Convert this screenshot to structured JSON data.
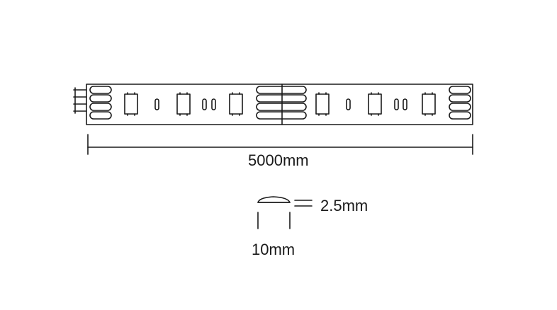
{
  "diagram": {
    "length_label": "5000mm",
    "thickness_label": "2.5mm",
    "width_label": "10mm"
  },
  "colors": {
    "line": "#1a1a1a",
    "background": "#ffffff"
  }
}
